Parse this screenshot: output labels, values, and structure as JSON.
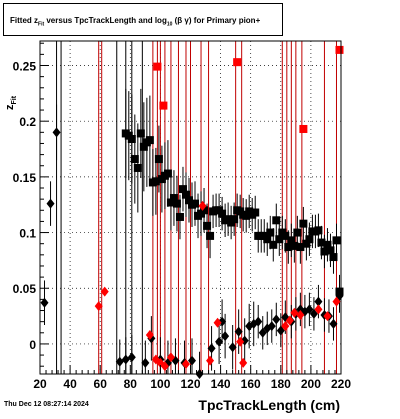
{
  "header": {
    "title_prefix": "Fitted",
    "title_z": "z",
    "title_sub_fit": "Fit",
    "title_mid": "versus TpcTrackLength and log",
    "title_sub_10": "10",
    "title_beta": "(β",
    "title_gamma": "γ)",
    "title_suffix": "for Primary pion+"
  },
  "axes": {
    "ylabel": "z",
    "ylabel_sub": "Fit",
    "xlabel": "TpcTrackLength (cm)"
  },
  "footer": {
    "datestamp": "Thu Dec 12 08:27:14 2024"
  },
  "chart_data": {
    "type": "scatter",
    "xlim": [
      20,
      220
    ],
    "ylim": [
      -0.027,
      0.272
    ],
    "xticks": [
      20,
      40,
      60,
      80,
      100,
      120,
      140,
      160,
      180,
      200,
      220
    ],
    "yticks": [
      0,
      0.05,
      0.1,
      0.15,
      0.2,
      0.25
    ],
    "ytick_labels": [
      "0",
      "0.05",
      "0.1",
      "0.15",
      "0.2",
      "0.25"
    ],
    "grid": true,
    "colors": {
      "black": "#000000",
      "red": "#ff0000",
      "redline": "#c00000"
    },
    "red_vlines_x": [
      59,
      61,
      95,
      98,
      100,
      103,
      107,
      112,
      117,
      120,
      127,
      132,
      150,
      154,
      181,
      184,
      187,
      190,
      194,
      209,
      217
    ],
    "black_vlines_x": [
      31,
      34,
      71,
      77,
      81,
      88
    ],
    "series": [
      {
        "marker": "square",
        "color": "#000000",
        "points": [
          [
            77,
            0.189,
            0.04
          ],
          [
            79,
            0.187,
            0.04
          ],
          [
            81,
            0.184,
            0.04
          ],
          [
            83,
            0.166,
            0.04
          ],
          [
            85,
            0.158,
            0.04
          ],
          [
            87,
            0.189,
            0.04
          ],
          [
            89,
            0.177,
            0.04
          ],
          [
            91,
            0.181,
            0.04
          ],
          [
            93,
            0.183,
            0.04
          ],
          [
            95,
            0.145,
            0.03
          ],
          [
            97,
            0.146,
            0.03
          ],
          [
            99,
            0.166,
            0.03
          ],
          [
            101,
            0.148,
            0.03
          ],
          [
            103,
            0.151,
            0.03
          ],
          [
            105,
            0.153,
            0.03
          ],
          [
            107,
            0.127,
            0.025
          ],
          [
            109,
            0.131,
            0.025
          ],
          [
            111,
            0.126,
            0.025
          ],
          [
            113,
            0.114,
            0.02
          ],
          [
            115,
            0.139,
            0.02
          ],
          [
            117,
            0.134,
            0.02
          ],
          [
            119,
            0.129,
            0.02
          ],
          [
            121,
            0.125,
            0.02
          ],
          [
            123,
            0.126,
            0.02
          ],
          [
            125,
            0.115,
            0.02
          ],
          [
            127,
            0.117,
            0.02
          ],
          [
            129,
            0.12,
            0.02
          ],
          [
            131,
            0.106,
            0.02
          ],
          [
            133,
            0.097,
            0.02
          ],
          [
            135,
            0.119,
            0.015
          ],
          [
            137,
            0.12,
            0.015
          ],
          [
            139,
            0.12,
            0.015
          ],
          [
            141,
            0.117,
            0.015
          ],
          [
            143,
            0.111,
            0.015
          ],
          [
            145,
            0.112,
            0.015
          ],
          [
            147,
            0.109,
            0.015
          ],
          [
            149,
            0.112,
            0.015
          ],
          [
            151,
            0.12,
            0.015
          ],
          [
            153,
            0.119,
            0.015
          ],
          [
            155,
            0.116,
            0.015
          ],
          [
            157,
            0.115,
            0.015
          ],
          [
            159,
            0.119,
            0.015
          ],
          [
            161,
            0.116,
            0.015
          ],
          [
            163,
            0.118,
            0.015
          ],
          [
            165,
            0.097,
            0.015
          ],
          [
            167,
            0.097,
            0.015
          ],
          [
            169,
            0.097,
            0.015
          ],
          [
            171,
            0.094,
            0.015
          ],
          [
            173,
            0.1,
            0.015
          ],
          [
            175,
            0.089,
            0.015
          ],
          [
            177,
            0.111,
            0.015
          ],
          [
            179,
            0.094,
            0.015
          ],
          [
            181,
            0.1,
            0.015
          ],
          [
            183,
            0.097,
            0.015
          ],
          [
            185,
            0.087,
            0.015
          ],
          [
            187,
            0.093,
            0.015
          ],
          [
            189,
            0.088,
            0.015
          ],
          [
            191,
            0.1,
            0.015
          ],
          [
            193,
            0.087,
            0.015
          ],
          [
            195,
            0.108,
            0.015
          ],
          [
            197,
            0.09,
            0.015
          ],
          [
            199,
            0.094,
            0.015
          ],
          [
            201,
            0.101,
            0.015
          ],
          [
            203,
            0.101,
            0.015
          ],
          [
            205,
            0.102,
            0.015
          ],
          [
            207,
            0.091,
            0.015
          ],
          [
            209,
            0.083,
            0.015
          ],
          [
            211,
            0.089,
            0.015
          ],
          [
            213,
            0.084,
            0.015
          ],
          [
            215,
            0.078,
            0.015
          ],
          [
            217,
            0.093,
            0.015
          ],
          [
            219,
            0.047,
            0.015
          ]
        ]
      },
      {
        "marker": "square",
        "color": "#ff0000",
        "points": [
          [
            98,
            0.249
          ],
          [
            102,
            0.214
          ],
          [
            151,
            0.253
          ],
          [
            195,
            0.193
          ],
          [
            219,
            0.264
          ]
        ]
      },
      {
        "marker": "diamond",
        "color": "#000000",
        "points": [
          [
            23,
            0.037,
            0.02
          ],
          [
            27,
            0.126,
            0.02
          ],
          [
            31,
            0.19,
            0.025
          ],
          [
            73,
            -0.016,
            0.02
          ],
          [
            77,
            -0.014,
            0.02
          ],
          [
            81,
            -0.012,
            0.02
          ],
          [
            90,
            -0.017,
            0.02
          ],
          [
            94,
            0.005,
            0.02
          ],
          [
            100,
            -0.014,
            0.02
          ],
          [
            105,
            -0.017,
            0.02
          ],
          [
            110,
            -0.015,
            0.02
          ],
          [
            116,
            -0.017,
            0.02
          ],
          [
            121,
            -0.015,
            0.02
          ],
          [
            126,
            -0.027,
            0.02
          ],
          [
            134,
            -0.004,
            0.02
          ],
          [
            139,
            0.002,
            0.02
          ],
          [
            141,
            0.02,
            0.02
          ],
          [
            143,
            0.007,
            0.02
          ],
          [
            148,
            -0.003,
            0.02
          ],
          [
            152,
            0.011,
            0.02
          ],
          [
            156,
            0.003,
            0.02
          ],
          [
            159,
            0.016,
            0.02
          ],
          [
            162,
            0.018,
            0.02
          ],
          [
            165,
            0.02,
            0.015
          ],
          [
            168,
            0.01,
            0.015
          ],
          [
            171,
            0.014,
            0.015
          ],
          [
            174,
            0.016,
            0.015
          ],
          [
            177,
            0.022,
            0.015
          ],
          [
            180,
            0.012,
            0.015
          ],
          [
            183,
            0.024,
            0.015
          ],
          [
            187,
            0.02,
            0.015
          ],
          [
            190,
            0.027,
            0.015
          ],
          [
            193,
            0.031,
            0.015
          ],
          [
            196,
            0.029,
            0.015
          ],
          [
            199,
            0.031,
            0.015
          ],
          [
            202,
            0.027,
            0.015
          ],
          [
            205,
            0.038,
            0.015
          ],
          [
            209,
            0.026,
            0.015
          ],
          [
            212,
            0.025,
            0.015
          ],
          [
            215,
            0.018,
            0.015
          ],
          [
            219,
            0.043,
            0.015
          ]
        ]
      },
      {
        "marker": "diamond",
        "color": "#ff0000",
        "points": [
          [
            59,
            0.034
          ],
          [
            63,
            0.047
          ],
          [
            93,
            0.008
          ],
          [
            97,
            -0.014
          ],
          [
            100,
            -0.017
          ],
          [
            103,
            -0.02
          ],
          [
            107,
            -0.012
          ],
          [
            117,
            -0.018
          ],
          [
            128,
            0.124
          ],
          [
            133,
            -0.015
          ],
          [
            138,
            0.019
          ],
          [
            153,
            0.002
          ],
          [
            155,
            -0.017
          ],
          [
            183,
            0.016
          ],
          [
            186,
            0.021
          ],
          [
            189,
            0.028
          ],
          [
            193,
            0.026
          ],
          [
            205,
            0.031
          ],
          [
            211,
            0.025
          ],
          [
            217,
            0.038
          ]
        ]
      }
    ]
  }
}
